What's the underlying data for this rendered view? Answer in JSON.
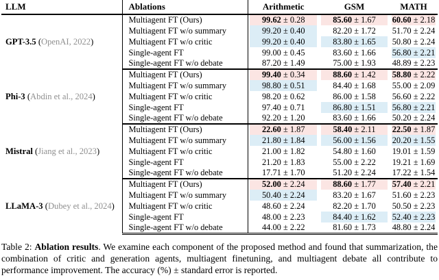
{
  "colors": {
    "best": "#fbe5e3",
    "second": "#dcedf6"
  },
  "table": {
    "headers": {
      "llm": "LLM",
      "ablations": "Ablations",
      "arithmetic": "Arithmetic",
      "gsm": "GSM",
      "math": "MATH"
    },
    "sections": [
      {
        "llm_name": "GPT-3.5",
        "cite_open": "(",
        "cite": "OpenAI, 2022",
        "cite_close": ")",
        "rows": [
          {
            "label": "Multiagent FT (Ours)",
            "best": true,
            "cells": [
              {
                "v": "99.62",
                "e": "± 0.28",
                "hl": "best"
              },
              {
                "v": "85.60",
                "e": "± 1.67",
                "hl": "best"
              },
              {
                "v": "60.60",
                "e": "± 2.18",
                "hl": "best"
              }
            ]
          },
          {
            "label": "Multiagent FT w/o summary",
            "best": false,
            "cells": [
              {
                "v": "99.20",
                "e": "± 0.40",
                "hl": "second"
              },
              {
                "v": "82.20",
                "e": "± 1.72",
                "hl": ""
              },
              {
                "v": "51.70",
                "e": "± 2.24",
                "hl": ""
              }
            ]
          },
          {
            "label": "Multiagent FT w/o critic",
            "best": false,
            "cells": [
              {
                "v": "99.20",
                "e": "± 0.40",
                "hl": "second"
              },
              {
                "v": "83.80",
                "e": "± 1.65",
                "hl": "second"
              },
              {
                "v": "50.80",
                "e": "± 2.24",
                "hl": ""
              }
            ]
          },
          {
            "label": "Single-agent FT",
            "best": false,
            "cells": [
              {
                "v": "99.00",
                "e": "± 0.45",
                "hl": ""
              },
              {
                "v": "83.60",
                "e": "± 1.66",
                "hl": ""
              },
              {
                "v": "56.80",
                "e": "± 2.21",
                "hl": "second"
              }
            ]
          },
          {
            "label": "Single-agent FT w/o debate",
            "best": false,
            "cells": [
              {
                "v": "87.20",
                "e": "± 1.49",
                "hl": ""
              },
              {
                "v": "75.00",
                "e": "± 1.93",
                "hl": ""
              },
              {
                "v": "48.89",
                "e": "± 2.23",
                "hl": ""
              }
            ]
          }
        ]
      },
      {
        "llm_name": "Phi-3",
        "cite_open": "(",
        "cite": "Abdin et al., 2024",
        "cite_close": ")",
        "rows": [
          {
            "label": "Multiagent FT (Ours)",
            "best": true,
            "cells": [
              {
                "v": "99.40",
                "e": "± 0.34",
                "hl": "best"
              },
              {
                "v": "88.60",
                "e": "± 1.42",
                "hl": "best"
              },
              {
                "v": "58.80",
                "e": "± 2.22",
                "hl": "best"
              }
            ]
          },
          {
            "label": "Multiagent FT w/o summary",
            "best": false,
            "cells": [
              {
                "v": "98.80",
                "e": "± 0.51",
                "hl": "second"
              },
              {
                "v": "84.40",
                "e": "± 1.68",
                "hl": ""
              },
              {
                "v": "55.00",
                "e": "± 2.09",
                "hl": ""
              }
            ]
          },
          {
            "label": "Multiagent FT w/o critic",
            "best": false,
            "cells": [
              {
                "v": "98.20",
                "e": "± 0.62",
                "hl": ""
              },
              {
                "v": "86.00",
                "e": "± 1.58",
                "hl": ""
              },
              {
                "v": "56.60",
                "e": "± 2.22",
                "hl": ""
              }
            ]
          },
          {
            "label": "Single-agent FT",
            "best": false,
            "cells": [
              {
                "v": "97.40",
                "e": "± 0.71",
                "hl": ""
              },
              {
                "v": "86.80",
                "e": "± 1.51",
                "hl": "second"
              },
              {
                "v": "56.80",
                "e": "± 2.21",
                "hl": "second"
              }
            ]
          },
          {
            "label": "Single-agent FT w/o debate",
            "best": false,
            "cells": [
              {
                "v": "92.20",
                "e": "± 1.20",
                "hl": ""
              },
              {
                "v": "83.60",
                "e": "± 1.66",
                "hl": ""
              },
              {
                "v": "50.20",
                "e": "± 2.24",
                "hl": ""
              }
            ]
          }
        ]
      },
      {
        "llm_name": "Mistral",
        "cite_open": "(",
        "cite": "Jiang et al., 2023",
        "cite_close": ")",
        "rows": [
          {
            "label": "Multiagent FT (Ours)",
            "best": true,
            "cells": [
              {
                "v": "22.60",
                "e": "± 1.87",
                "hl": "best"
              },
              {
                "v": "58.40",
                "e": "± 2.11",
                "hl": "best"
              },
              {
                "v": "22.50",
                "e": "± 1.87",
                "hl": "best"
              }
            ]
          },
          {
            "label": "Multiagent FT w/o summary",
            "best": false,
            "cells": [
              {
                "v": "21.80",
                "e": "± 1.84",
                "hl": "second"
              },
              {
                "v": "56.00",
                "e": "± 1.56",
                "hl": "second"
              },
              {
                "v": "20.20",
                "e": "± 1.55",
                "hl": "second"
              }
            ]
          },
          {
            "label": "Multiagent FT w/o critic",
            "best": false,
            "cells": [
              {
                "v": "21.00",
                "e": "± 1.82",
                "hl": ""
              },
              {
                "v": "54.80",
                "e": "± 1.60",
                "hl": ""
              },
              {
                "v": "19.01",
                "e": "± 1.59",
                "hl": ""
              }
            ]
          },
          {
            "label": "Single-agent FT",
            "best": false,
            "cells": [
              {
                "v": "21.20",
                "e": "± 1.83",
                "hl": ""
              },
              {
                "v": "55.00",
                "e": "± 2.22",
                "hl": ""
              },
              {
                "v": "19.21",
                "e": "± 1.69",
                "hl": ""
              }
            ]
          },
          {
            "label": "Single-agent FT w/o debate",
            "best": false,
            "cells": [
              {
                "v": "17.71",
                "e": "± 1.70",
                "hl": ""
              },
              {
                "v": "51.20",
                "e": "± 2.24",
                "hl": ""
              },
              {
                "v": "17.22",
                "e": "± 1.54",
                "hl": ""
              }
            ]
          }
        ]
      },
      {
        "llm_name": "LLaMA-3",
        "cite_open": "(",
        "cite": "Dubey et al., 2024",
        "cite_close": ")",
        "rows": [
          {
            "label": "Multiagent FT (Ours)",
            "best": true,
            "cells": [
              {
                "v": "52.00",
                "e": "± 2.24",
                "hl": "best"
              },
              {
                "v": "88.60",
                "e": "± 1.77",
                "hl": "best"
              },
              {
                "v": "57.40",
                "e": "± 2.21",
                "hl": "best"
              }
            ]
          },
          {
            "label": "Multiagent FT w/o summary",
            "best": false,
            "cells": [
              {
                "v": "50.40",
                "e": "± 2.24",
                "hl": "second"
              },
              {
                "v": "83.20",
                "e": "± 1.67",
                "hl": ""
              },
              {
                "v": "51.60",
                "e": "± 2.23",
                "hl": ""
              }
            ]
          },
          {
            "label": "Multiagent FT w/o critic",
            "best": false,
            "cells": [
              {
                "v": "48.60",
                "e": "± 2.24",
                "hl": ""
              },
              {
                "v": "82.20",
                "e": "± 1.70",
                "hl": ""
              },
              {
                "v": "50.50",
                "e": "± 2.23",
                "hl": ""
              }
            ]
          },
          {
            "label": "Single-agent FT",
            "best": false,
            "cells": [
              {
                "v": "48.00",
                "e": "± 2.23",
                "hl": ""
              },
              {
                "v": "84.40",
                "e": "± 1.62",
                "hl": "second"
              },
              {
                "v": "52.40",
                "e": "± 2.23",
                "hl": "second"
              }
            ]
          },
          {
            "label": "Single-agent FT w/o debate",
            "best": false,
            "cells": [
              {
                "v": "44.00",
                "e": "± 2.22",
                "hl": ""
              },
              {
                "v": "81.60",
                "e": "± 1.73",
                "hl": ""
              },
              {
                "v": "48.80",
                "e": "± 2.24",
                "hl": ""
              }
            ]
          }
        ]
      }
    ]
  },
  "caption": {
    "prefix": "Table 2: ",
    "title": "Ablation results",
    "body": ". We examine each component of the proposed method and found that summarization, the combination of critic and generation agents, multiagent finetuning, and multiagent debate all contribute to performance improvement. The accuracy (%) ± standard error is reported."
  }
}
